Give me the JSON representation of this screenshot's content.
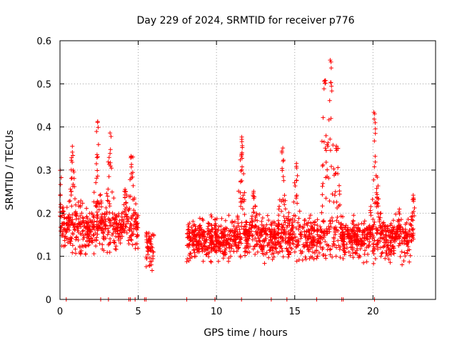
{
  "chart_data": {
    "type": "scatter",
    "title": "Day 229 of 2024, SRMTID for receiver p776",
    "xlabel": "GPS time / hours",
    "ylabel": "SRMTID / TECUs",
    "xlim": [
      0,
      24
    ],
    "ylim": [
      0,
      0.6
    ],
    "xticks": [
      0,
      5,
      10,
      15,
      20
    ],
    "xtick_labels": [
      "0",
      "5",
      "10",
      "15",
      "20"
    ],
    "yticks": [
      0,
      0.1,
      0.2,
      0.3,
      0.4,
      0.5,
      0.6
    ],
    "ytick_labels": [
      "0",
      "0.1",
      "0.2",
      "0.3",
      "0.4",
      "0.5",
      "0.6"
    ],
    "grid": true,
    "marker": "+",
    "color": "#ff0000",
    "series": [
      {
        "name": "SRMTID",
        "segments": [
          {
            "start": 0.0,
            "end": 5.0,
            "base": 0.16,
            "spread": 0.05
          },
          {
            "start": 5.5,
            "end": 6.0,
            "base": 0.12,
            "spread": 0.04
          },
          {
            "start": 8.1,
            "end": 22.6,
            "base": 0.14,
            "spread": 0.045
          }
        ],
        "peaks": [
          {
            "x": 0.0,
            "y": 0.3
          },
          {
            "x": 0.8,
            "y": 0.34
          },
          {
            "x": 2.4,
            "y": 0.4
          },
          {
            "x": 3.2,
            "y": 0.39
          },
          {
            "x": 4.6,
            "y": 0.35
          },
          {
            "x": 4.2,
            "y": 0.26
          },
          {
            "x": 11.6,
            "y": 0.38
          },
          {
            "x": 12.4,
            "y": 0.26
          },
          {
            "x": 14.2,
            "y": 0.37
          },
          {
            "x": 15.1,
            "y": 0.33
          },
          {
            "x": 16.9,
            "y": 0.53
          },
          {
            "x": 17.3,
            "y": 0.56
          },
          {
            "x": 17.7,
            "y": 0.37
          },
          {
            "x": 20.1,
            "y": 0.44
          },
          {
            "x": 20.3,
            "y": 0.28
          },
          {
            "x": 21.7,
            "y": 0.21
          },
          {
            "x": 22.6,
            "y": 0.25
          }
        ],
        "zero_points": [
          0.4,
          2.6,
          3.1,
          4.4,
          4.5,
          4.8,
          5.4,
          5.5,
          8.1,
          9.9,
          11.6,
          13.5,
          14.5,
          16.4,
          18.0,
          18.1,
          20.1
        ]
      }
    ]
  }
}
